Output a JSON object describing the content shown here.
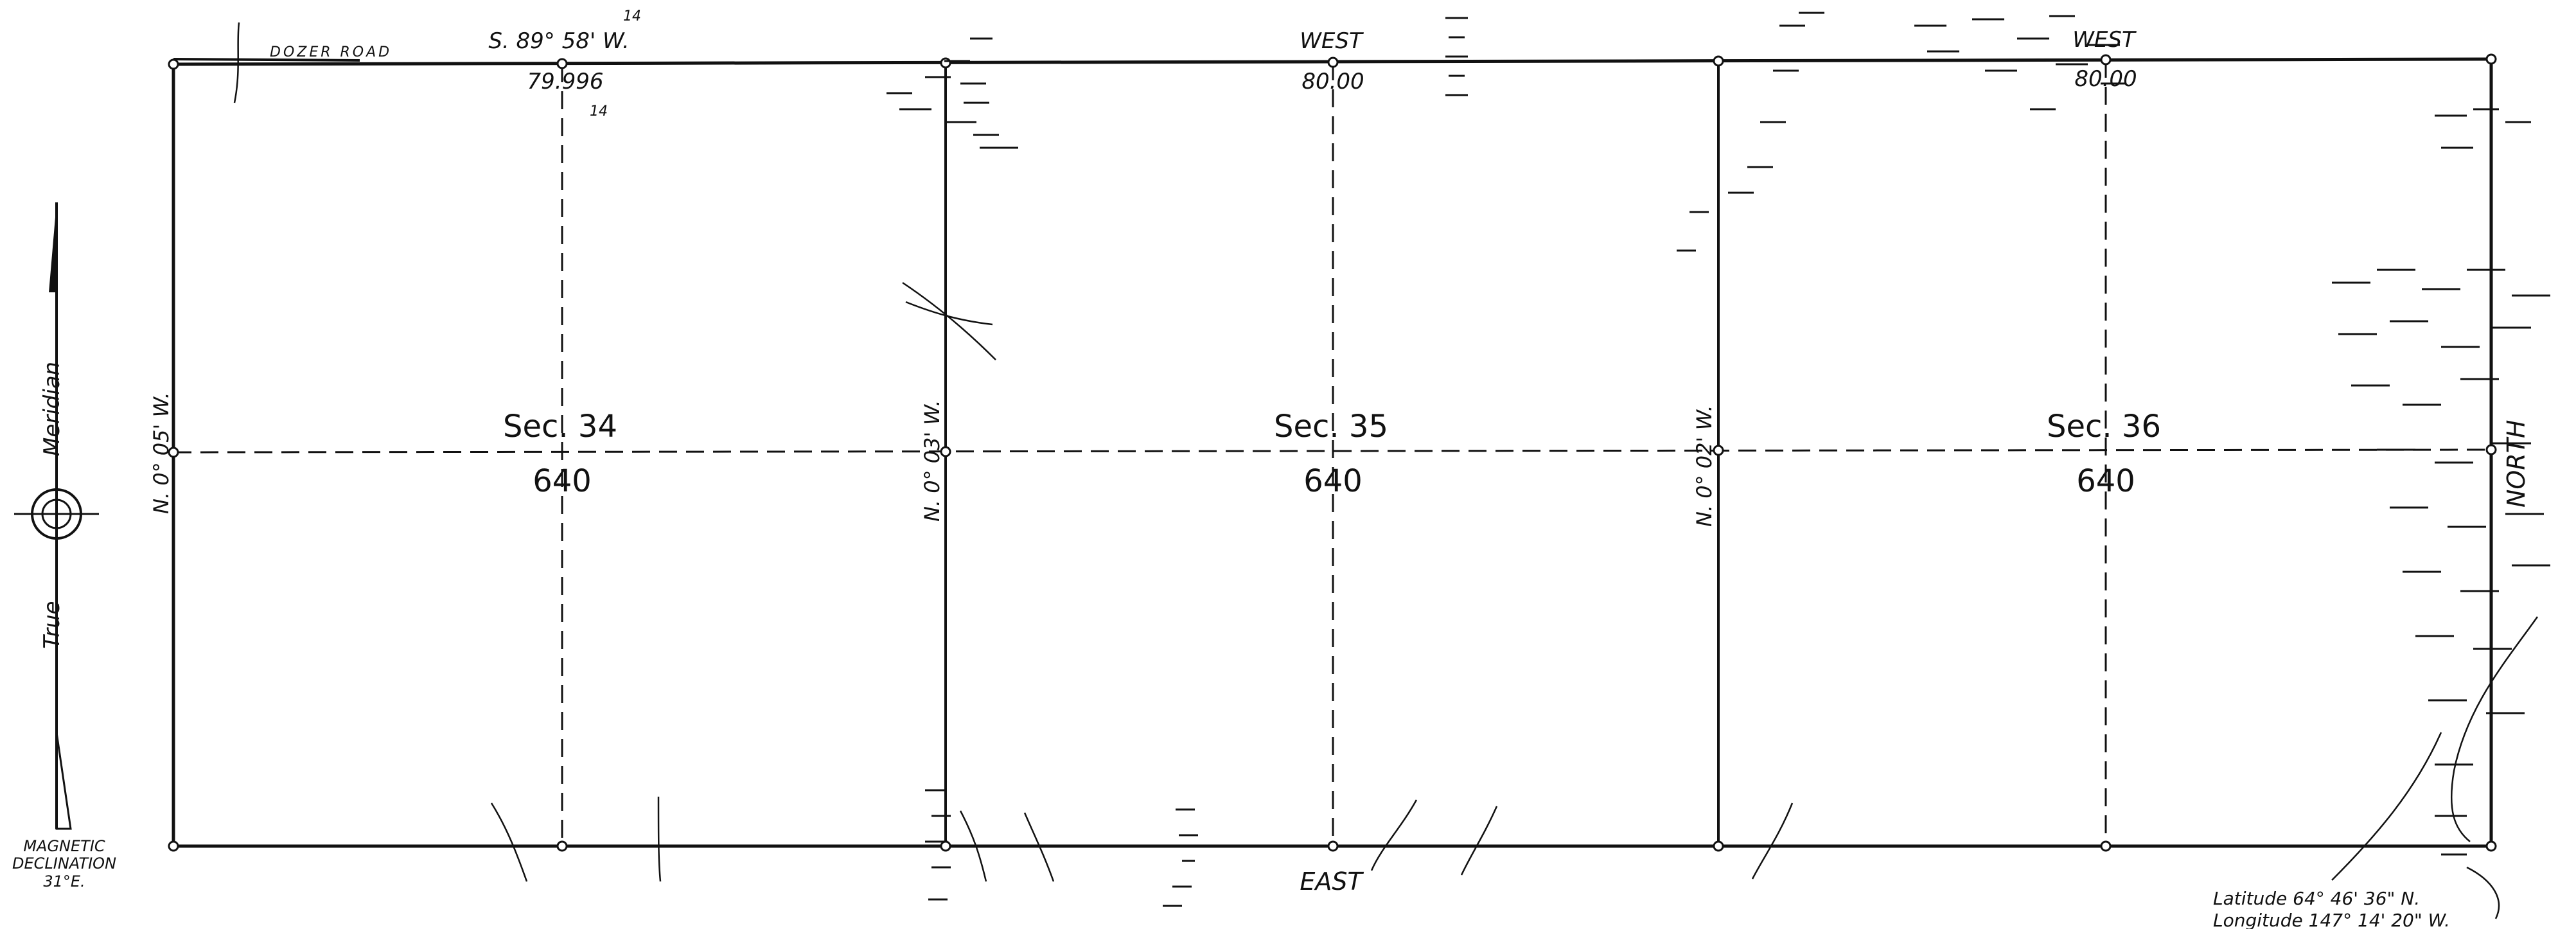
{
  "sections": [
    {
      "label": "Sec. 34",
      "acres": "640"
    },
    {
      "label": "Sec. 35",
      "acres": "640"
    },
    {
      "label": "Sec. 36",
      "acres": "640"
    }
  ],
  "road_label": "DOZER ROAD",
  "north_boundary": [
    {
      "bearing": "S. 89° 58' W.",
      "distance": "79.996"
    },
    {
      "bearing": "WEST",
      "distance": "80.00"
    },
    {
      "bearing": "WEST",
      "distance": "80.00"
    }
  ],
  "south_boundary_bearing": "EAST",
  "west_bearings": [
    "N. 0° 05' W.",
    "N. 0° 03' W.",
    "N. 0° 02' W."
  ],
  "east_bearing": "NORTH",
  "meridian": {
    "top_word": "Meridian",
    "bottom_word": "True"
  },
  "declination": {
    "line1": "MAGNETIC",
    "line2": "DECLINATION",
    "line3": "31°E."
  },
  "coordinates": {
    "latitude": "Latitude  64° 46' 36\" N.",
    "longitude": "Longitude  147° 14' 20\" W."
  },
  "small_marks": [
    "14",
    "14"
  ]
}
